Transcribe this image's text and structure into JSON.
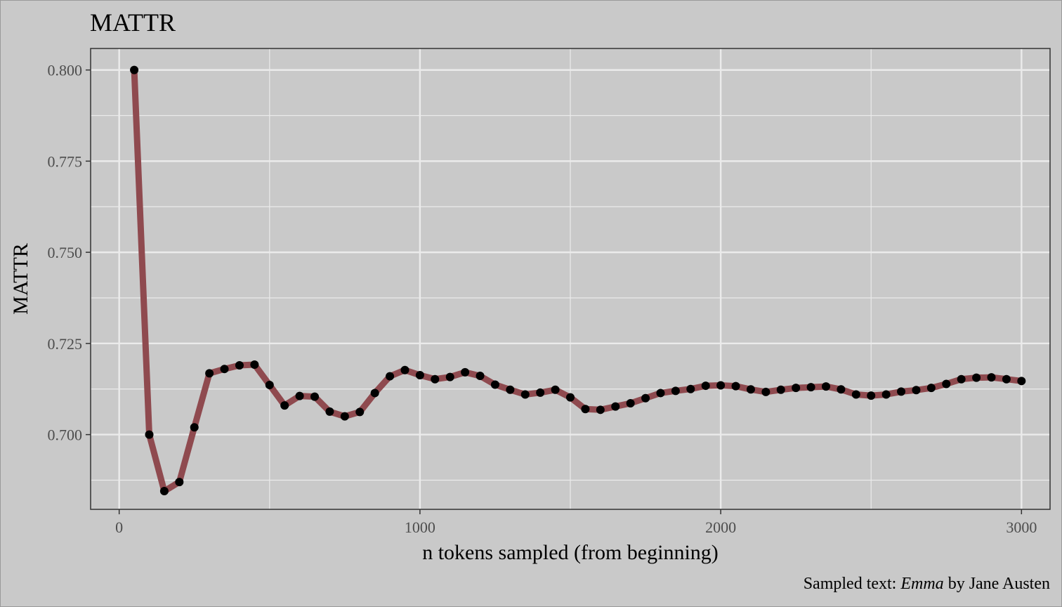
{
  "chart_data": {
    "type": "line",
    "title": "MATTR",
    "xlabel": "n tokens sampled (from beginning)",
    "ylabel": "MATTR",
    "caption": {
      "prefix": "Sampled text: ",
      "emphasis": "Emma",
      "suffix": " by Jane Austen"
    },
    "xlim": [
      -95,
      3095
    ],
    "ylim": [
      0.6795,
      0.8059
    ],
    "x_ticks": [
      0,
      1000,
      2000,
      3000
    ],
    "x_tick_labels": [
      "0",
      "1000",
      "2000",
      "3000"
    ],
    "y_ticks": [
      0.7,
      0.725,
      0.75,
      0.775,
      0.8
    ],
    "y_tick_labels": [
      "0.700",
      "0.725",
      "0.750",
      "0.775",
      "0.800"
    ],
    "grid": true,
    "line_color": "#8f4a4f",
    "point_color": "#000000",
    "panel_color": "#c9c9c9",
    "grid_color": "#ebebeb",
    "series": [
      {
        "x": [
          50,
          100,
          150,
          200,
          250,
          300,
          350,
          400,
          450,
          500,
          550,
          600,
          650,
          700,
          750,
          800,
          850,
          900,
          950,
          1000,
          1050,
          1100,
          1150,
          1200,
          1250,
          1300,
          1350,
          1400,
          1450,
          1500,
          1550,
          1600,
          1650,
          1700,
          1750,
          1800,
          1850,
          1900,
          1950,
          2000,
          2050,
          2100,
          2150,
          2200,
          2250,
          2300,
          2350,
          2400,
          2450,
          2500,
          2550,
          2600,
          2650,
          2700,
          2750,
          2800,
          2850,
          2900,
          2950,
          3000
        ],
        "y": [
          0.8,
          0.7,
          0.6845,
          0.687,
          0.702,
          0.7168,
          0.718,
          0.719,
          0.7192,
          0.7136,
          0.708,
          0.7106,
          0.7104,
          0.7063,
          0.705,
          0.7062,
          0.7114,
          0.716,
          0.7177,
          0.7163,
          0.7152,
          0.7158,
          0.7171,
          0.7161,
          0.7137,
          0.7123,
          0.711,
          0.7115,
          0.7123,
          0.7102,
          0.707,
          0.7068,
          0.7077,
          0.7086,
          0.71,
          0.7114,
          0.712,
          0.7125,
          0.7134,
          0.7135,
          0.7133,
          0.7124,
          0.7117,
          0.7123,
          0.7128,
          0.713,
          0.7132,
          0.7124,
          0.711,
          0.7107,
          0.711,
          0.7118,
          0.7122,
          0.7128,
          0.7139,
          0.7152,
          0.7156,
          0.7157,
          0.7152,
          0.7147
        ]
      }
    ]
  }
}
